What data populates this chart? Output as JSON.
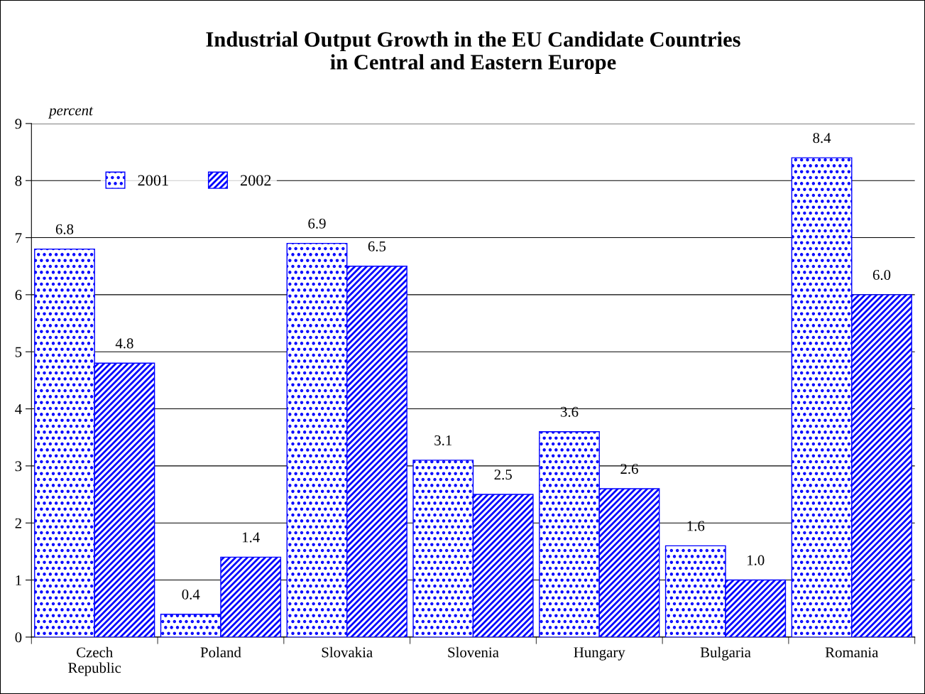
{
  "chart_data": {
    "type": "bar",
    "title": "Industrial Output Growth in the EU Candidate Countries\nin Central and Eastern Europe",
    "ylabel": "percent",
    "categories": [
      "Czech\nRepublic",
      "Poland",
      "Slovakia",
      "Slovenia",
      "Hungary",
      "Bulgaria",
      "Romania"
    ],
    "series": [
      {
        "name": "2001",
        "color": "#0000ff",
        "values": [
          6.8,
          0.4,
          6.9,
          3.1,
          3.6,
          1.6,
          8.4
        ],
        "value_labels": [
          "6.8",
          "0.4",
          "6.9",
          "3.1",
          "3.6",
          "1.6",
          "8.4"
        ]
      },
      {
        "name": "2002",
        "color": "#0000ff",
        "values": [
          4.8,
          1.4,
          6.5,
          2.5,
          2.6,
          1.0,
          6.0
        ],
        "value_labels": [
          "4.8",
          "1.4",
          "6.5",
          "2.5",
          "2.6",
          "1.0",
          "6.0"
        ]
      }
    ],
    "ylim": [
      0,
      9
    ],
    "yticks": [
      0,
      1,
      2,
      3,
      4,
      5,
      6,
      7,
      8,
      9
    ],
    "grid": "y",
    "legend": "top left"
  }
}
